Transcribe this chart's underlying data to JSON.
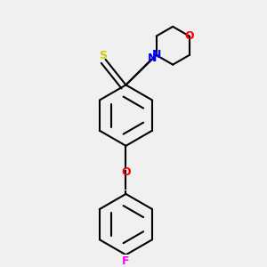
{
  "background_color": "#f0f0f0",
  "line_color": "#000000",
  "bond_width": 1.5,
  "atom_colors": {
    "S": "#cccc00",
    "N": "#0000ff",
    "O_morpholine": "#ff0000",
    "O_ether": "#ff0000",
    "F": "#ff00ff"
  },
  "figsize": [
    3.0,
    3.0
  ],
  "dpi": 100
}
